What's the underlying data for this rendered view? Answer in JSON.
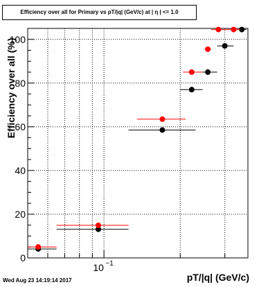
{
  "title": "Efficiency over all for Primary vs pT/|q| (GeV/c) at | η | <= 1.0",
  "timestamp": "Wed Aug 23 14:19:14 2017",
  "colors": {
    "series_black": "#000000",
    "series_red": "#ff0000",
    "grid": "#000000"
  },
  "chart_data": {
    "type": "scatter",
    "title": "Efficiency over all for Primary vs pT/|q| (GeV/c) at | η | <= 1.0",
    "xlabel": "pT/|q| (GeV/c)",
    "ylabel": "Efficiency over all (%)",
    "x_scale": "log",
    "xlim": [
      0.05,
      0.37
    ],
    "ylim": [
      0,
      105
    ],
    "grid": true,
    "y_ticks": [
      0,
      20,
      40,
      60,
      80,
      100
    ],
    "x_tick_labels": [
      {
        "x": 0.1,
        "base": "10",
        "exponent": "−1"
      }
    ],
    "series": [
      {
        "color": "#000000",
        "points": [
          {
            "x": 0.055,
            "xerr": [
              0.05,
              0.065
            ],
            "y": 4.1
          },
          {
            "x": 0.095,
            "xerr": [
              0.065,
              0.125
            ],
            "y": 13.1
          },
          {
            "x": 0.17,
            "xerr": [
              0.125,
              0.23
            ],
            "y": 58.5
          },
          {
            "x": 0.222,
            "xerr": [
              0.2,
              0.245
            ],
            "y": 77.0
          },
          {
            "x": 0.257,
            "xerr": [
              0.235,
              0.28
            ],
            "y": 85.0
          },
          {
            "x": 0.3,
            "xerr": [
              0.28,
              0.325
            ],
            "y": 97.0
          },
          {
            "x": 0.35,
            "xerr": [
              0.335,
              0.365
            ],
            "y": 104.5
          }
        ]
      },
      {
        "color": "#ff0000",
        "points": [
          {
            "x": 0.055,
            "xerr": [
              0.05,
              0.065
            ],
            "y": 5.0
          },
          {
            "x": 0.095,
            "xerr": [
              0.065,
              0.125
            ],
            "y": 14.9
          },
          {
            "x": 0.17,
            "xerr": [
              0.135,
              0.21
            ],
            "y": 63.5
          },
          {
            "x": 0.222,
            "xerr": [
              0.205,
              0.245
            ],
            "y": 85.0
          },
          {
            "x": 0.257,
            "xerr": [
              0.25,
              0.265
            ],
            "y": 95.5
          },
          {
            "x": 0.283,
            "xerr": [
              0.265,
              0.305
            ],
            "y": 104.5
          },
          {
            "x": 0.325,
            "xerr": [
              0.305,
              0.345
            ],
            "y": 104.5
          }
        ]
      }
    ]
  }
}
